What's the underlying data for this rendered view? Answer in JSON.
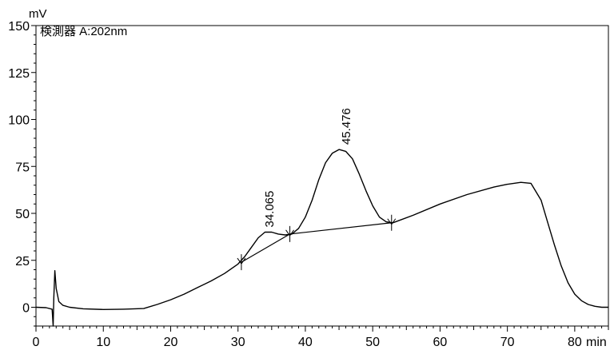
{
  "chart_data": {
    "type": "line",
    "title": "",
    "detector_label": "検測器 A:202nm",
    "ylabel": "mV",
    "xlabel": "min",
    "xlim": [
      0,
      85
    ],
    "ylim": [
      -10,
      150
    ],
    "x_ticks": [
      0,
      10,
      20,
      30,
      40,
      50,
      60,
      70,
      80
    ],
    "y_ticks": [
      0,
      25,
      50,
      75,
      100,
      125,
      150
    ],
    "x_tick_labels": [
      "0",
      "10",
      "20",
      "30",
      "40",
      "50",
      "60",
      "70",
      "80"
    ],
    "y_tick_labels": [
      "0",
      "25",
      "50",
      "75",
      "100",
      "125",
      "150"
    ],
    "grid": false,
    "series": [
      {
        "x": [
          0,
          1.5,
          2.4,
          2.55,
          2.65,
          2.8,
          3.0,
          3.4,
          4,
          5,
          7,
          10,
          13,
          16,
          18,
          20,
          22,
          24,
          26,
          28,
          30,
          31,
          32,
          33,
          34,
          35,
          36,
          37,
          38,
          39,
          40,
          41,
          42,
          43,
          44,
          45,
          46,
          47,
          48,
          49,
          50,
          51,
          52,
          53,
          56,
          60,
          64,
          68,
          70,
          72,
          73.5,
          75,
          76,
          77,
          78,
          79,
          80,
          81,
          82,
          83,
          84,
          85
        ],
        "y": [
          0,
          -0.2,
          -1,
          -10,
          5,
          19.5,
          10,
          3,
          1,
          0,
          -0.8,
          -1.2,
          -1,
          -0.7,
          1.5,
          4,
          7,
          10.5,
          14,
          18,
          23,
          27,
          32,
          37,
          40,
          40,
          39,
          38.5,
          39,
          42,
          48,
          57,
          68,
          77,
          82,
          84,
          83,
          79,
          71,
          62,
          54,
          48,
          45.5,
          45,
          49,
          55,
          60,
          64,
          65.5,
          66.5,
          66,
          57,
          45,
          33,
          22,
          13,
          7,
          3.5,
          1.5,
          0.5,
          0,
          0
        ]
      }
    ],
    "baseline_segments": [
      {
        "x": [
          30.5,
          37.7
        ],
        "y": [
          24,
          39
        ]
      },
      {
        "x": [
          37.7,
          52.8
        ],
        "y": [
          39,
          45
        ]
      }
    ],
    "markers": [
      {
        "x": 30.5,
        "y": 24
      },
      {
        "x": 37.7,
        "y": 39
      },
      {
        "x": 52.8,
        "y": 45
      }
    ],
    "peak_labels": [
      {
        "text": "34.065",
        "x": 34.065,
        "y": 40
      },
      {
        "text": "45.476",
        "x": 45.476,
        "y": 84
      }
    ]
  }
}
